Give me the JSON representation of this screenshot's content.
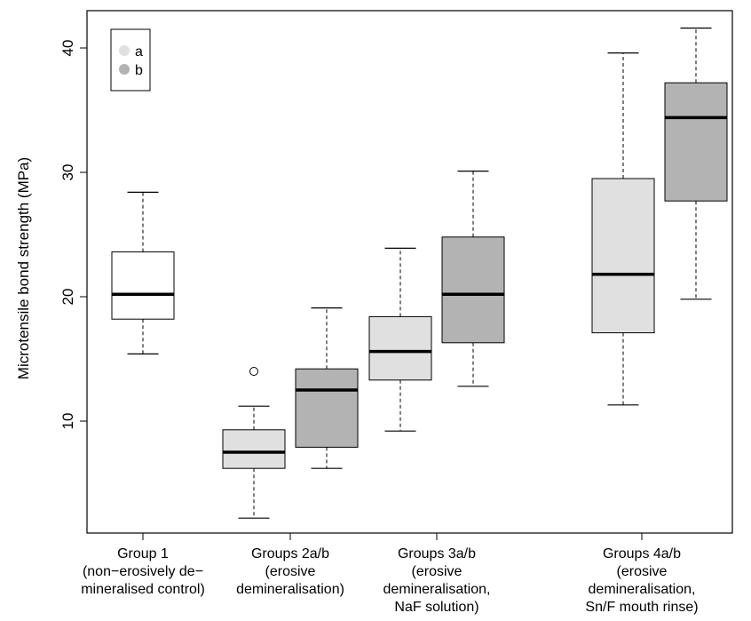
{
  "chart_data": {
    "type": "boxplot",
    "ylabel": "Microtensile bond strength (MPa)",
    "ylim": [
      1,
      43
    ],
    "y_ticks": [
      10,
      20,
      30,
      40
    ],
    "grid": false,
    "legend": {
      "placement": "top-left",
      "entries": [
        {
          "label": "a",
          "color": "#e0e0e0"
        },
        {
          "label": "b",
          "color": "#b3b3b3"
        }
      ]
    },
    "categories": [
      {
        "lines": [
          "Group 1",
          "(non−erosively de−",
          "mineralised control)"
        ]
      },
      {
        "lines": [
          "Groups 2a/b",
          "(erosive",
          "demineralisation)"
        ]
      },
      {
        "lines": [
          "Groups 3a/b",
          "(erosive",
          "demineralisation,",
          "NaF solution)"
        ]
      },
      {
        "lines": [
          "Groups 4a/b",
          "(erosive",
          "demineralisation,",
          "Sn/F mouth rinse)"
        ]
      }
    ],
    "boxes": [
      {
        "group": "Group 1",
        "series": "control",
        "color": "#ffffff",
        "min": 15.4,
        "q1": 18.2,
        "median": 20.2,
        "q3": 23.6,
        "max": 28.4,
        "outliers": []
      },
      {
        "group": "Groups 2a/b",
        "series": "a",
        "color": "#e0e0e0",
        "min": 2.2,
        "q1": 6.2,
        "median": 7.5,
        "q3": 9.3,
        "max": 11.2,
        "outliers": [
          14.0
        ]
      },
      {
        "group": "Groups 2a/b",
        "series": "b",
        "color": "#b3b3b3",
        "min": 6.2,
        "q1": 7.9,
        "median": 12.5,
        "q3": 14.2,
        "max": 19.1,
        "outliers": []
      },
      {
        "group": "Groups 3a/b",
        "series": "a",
        "color": "#e0e0e0",
        "min": 9.2,
        "q1": 13.3,
        "median": 15.6,
        "q3": 18.4,
        "max": 23.9,
        "outliers": []
      },
      {
        "group": "Groups 3a/b",
        "series": "b",
        "color": "#b3b3b3",
        "min": 12.8,
        "q1": 16.3,
        "median": 20.2,
        "q3": 24.8,
        "max": 30.1,
        "outliers": []
      },
      {
        "group": "Groups 4a/b",
        "series": "a",
        "color": "#e0e0e0",
        "min": 11.3,
        "q1": 17.1,
        "median": 21.8,
        "q3": 29.5,
        "max": 39.6,
        "outliers": []
      },
      {
        "group": "Groups 4a/b",
        "series": "b",
        "color": "#b3b3b3",
        "min": 19.8,
        "q1": 27.7,
        "median": 34.4,
        "q3": 37.2,
        "max": 41.6,
        "outliers": []
      }
    ]
  }
}
